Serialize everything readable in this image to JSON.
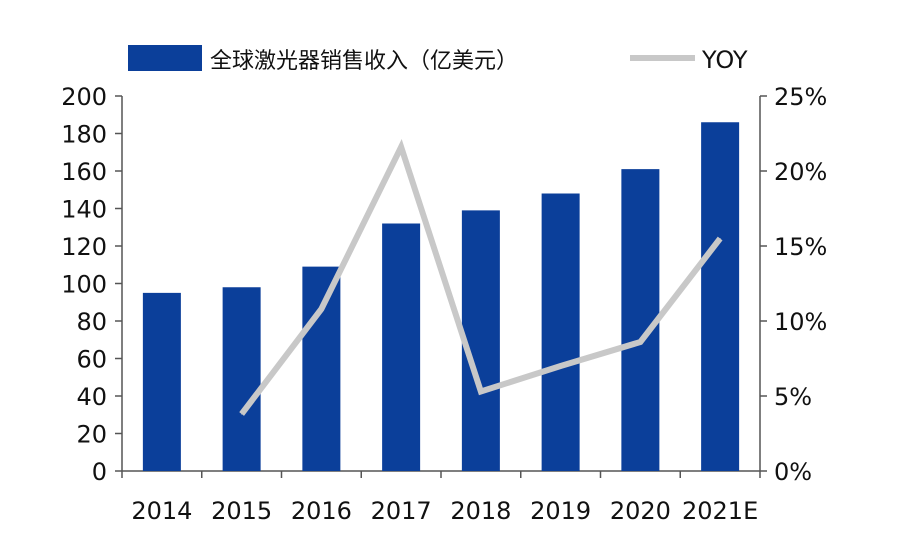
{
  "colors": {
    "bar": "#0b3f9a",
    "line": "#c8c8c8",
    "axis": "#555555",
    "text": "#111111"
  },
  "chart_data": {
    "type": "bar",
    "categories": [
      "2014",
      "2015",
      "2016",
      "2017",
      "2018",
      "2019",
      "2020",
      "2021E"
    ],
    "series": [
      {
        "name": "全球激光器销售收入（亿美元）",
        "type": "bar",
        "axis": "left",
        "values": [
          95,
          98,
          109,
          132,
          139,
          148,
          161,
          186
        ]
      },
      {
        "name": "YOY",
        "type": "line",
        "axis": "right",
        "values": [
          null,
          3.8,
          10.8,
          21.6,
          5.3,
          7.0,
          8.6,
          15.5
        ]
      }
    ],
    "y_left": {
      "lim": [
        0,
        200
      ],
      "ticks": [
        "0",
        "20",
        "40",
        "60",
        "80",
        "100",
        "120",
        "140",
        "160",
        "180",
        "200"
      ]
    },
    "y_right": {
      "lim": [
        0,
        25
      ],
      "ticks": [
        "0%",
        "5%",
        "10%",
        "15%",
        "20%",
        "25%"
      ]
    },
    "legend_position": "top",
    "grid": false
  }
}
